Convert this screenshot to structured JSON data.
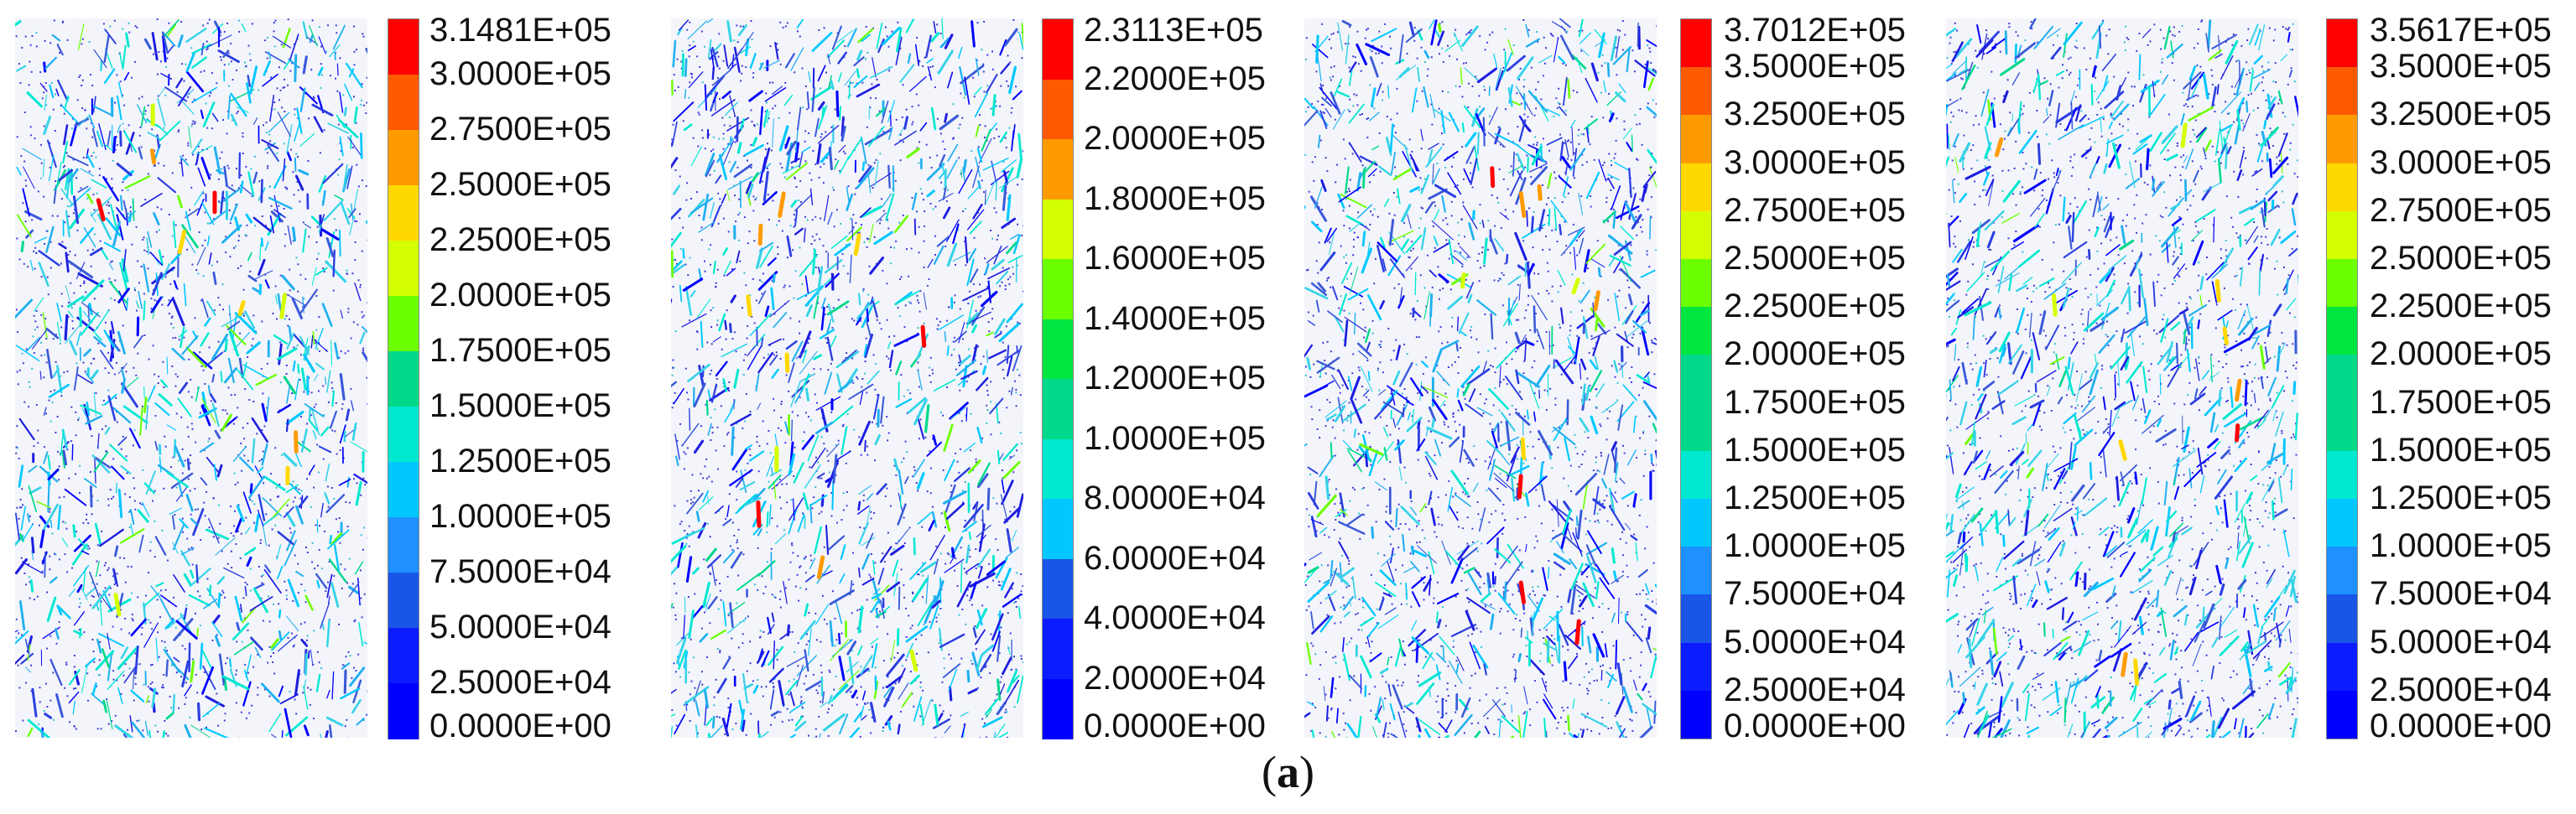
{
  "caption": {
    "open": "(",
    "letter": "a",
    "close": ")"
  },
  "colorbar_colors": [
    "#ff0000",
    "#ff5a00",
    "#ff9b00",
    "#ffd800",
    "#d4ff00",
    "#6cff00",
    "#00e640",
    "#00d98a",
    "#00e8d0",
    "#00c8ff",
    "#1e90ff",
    "#1955e6",
    "#0b1cff",
    "#0000ff"
  ],
  "panels": [
    {
      "labels": [
        "3.1481E+05",
        "3.0000E+05",
        "2.7500E+05",
        "2.5000E+05",
        "2.2500E+05",
        "2.0000E+05",
        "1.7500E+05",
        "1.5000E+05",
        "1.2500E+05",
        "1.0000E+05",
        "7.5000E+04",
        "5.0000E+04",
        "2.5000E+04",
        "0.0000E+00"
      ]
    },
    {
      "labels": [
        "2.3113E+05",
        "2.2000E+05",
        "2.0000E+05",
        "1.8000E+05",
        "1.6000E+05",
        "1.4000E+05",
        "1.2000E+05",
        "1.0000E+05",
        "8.0000E+04",
        "6.0000E+04",
        "4.0000E+04",
        "2.0000E+04",
        "0.0000E+00"
      ]
    },
    {
      "labels": [
        "3.7012E+05",
        "3.5000E+05",
        "3.2500E+05",
        "3.0000E+05",
        "2.7500E+05",
        "2.5000E+05",
        "2.2500E+05",
        "2.0000E+05",
        "1.7500E+05",
        "1.5000E+05",
        "1.2500E+05",
        "1.0000E+05",
        "7.5000E+04",
        "5.0000E+04",
        "2.5000E+04",
        "0.0000E+00"
      ]
    },
    {
      "labels": [
        "3.5617E+05",
        "3.5000E+05",
        "3.2500E+05",
        "3.0000E+05",
        "2.7500E+05",
        "2.5000E+05",
        "2.2500E+05",
        "2.0000E+05",
        "1.7500E+05",
        "1.5000E+05",
        "1.2500E+05",
        "1.0000E+05",
        "7.5000E+04",
        "5.0000E+04",
        "2.5000E+04",
        "0.0000E+00"
      ]
    }
  ]
}
